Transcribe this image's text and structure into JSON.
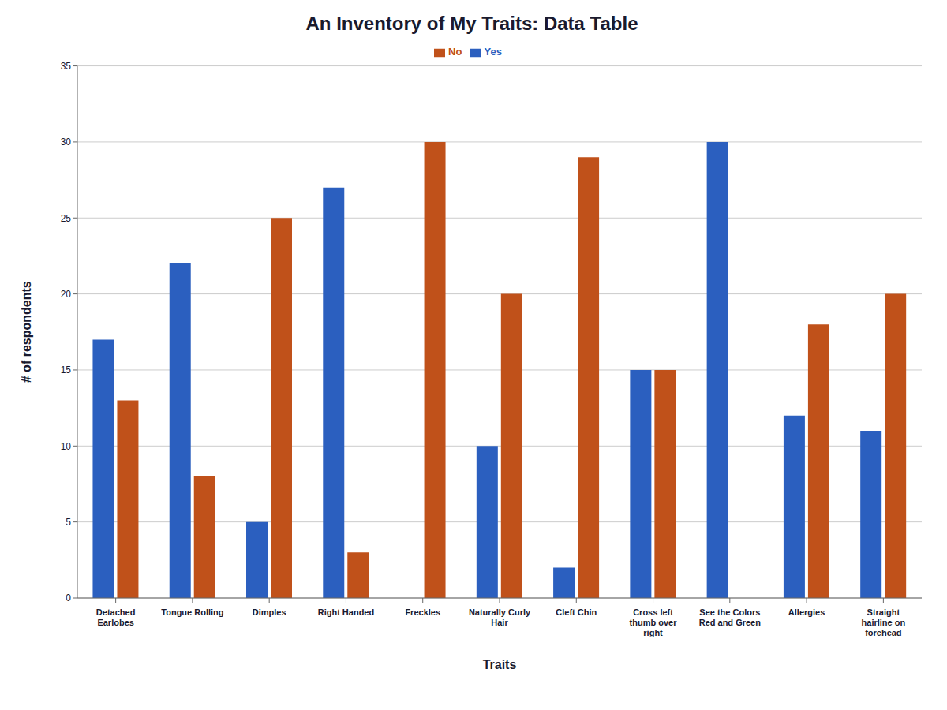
{
  "chart_data": {
    "type": "bar",
    "title": "An Inventory of My Traits: Data Table",
    "xlabel": "Traits",
    "ylabel": "# of respondents",
    "categories": [
      "Detached\nEarlobes",
      "Tongue Rolling",
      "Dimples",
      "Right Handed",
      "Freckles",
      "Naturally Curly\nHair",
      "Cleft Chin",
      "Cross left\nthumb over\nright",
      "See the Colors\nRed and Green",
      "Allergies",
      "Straight\nhairline on\nforehead"
    ],
    "series": [
      {
        "name": "Yes",
        "color": "#2B5FBF",
        "values": [
          17,
          22,
          5,
          27,
          0,
          10,
          2,
          15,
          30,
          12,
          11
        ]
      },
      {
        "name": "No",
        "color": "#C0511A",
        "values": [
          13,
          8,
          25,
          3,
          30,
          20,
          29,
          15,
          0,
          18,
          20
        ]
      }
    ],
    "ylim": [
      0,
      35
    ],
    "yticks": [
      0,
      5,
      10,
      15,
      20,
      25,
      30,
      35
    ],
    "grid": true,
    "legend": "top"
  }
}
